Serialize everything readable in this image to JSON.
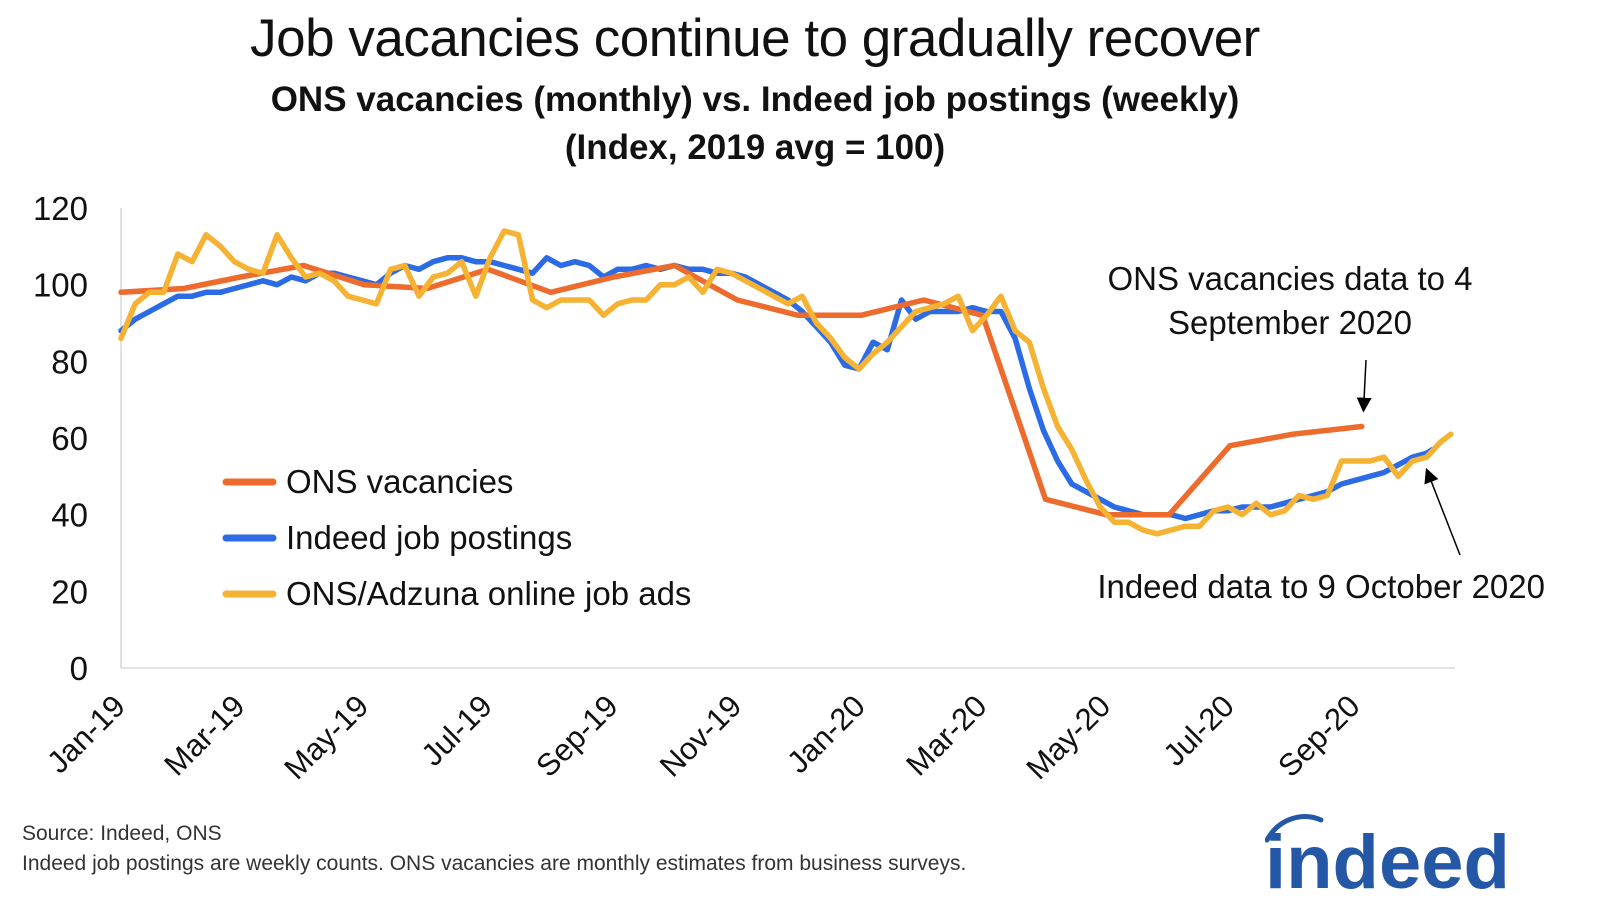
{
  "title": "Job vacancies continue to gradually recover",
  "subtitle_line1": "ONS vacancies (monthly) vs. Indeed job postings (weekly)",
  "subtitle_line2": "(Index, 2019 avg = 100)",
  "footer": {
    "source": "Source: Indeed, ONS",
    "note": "Indeed job postings are weekly counts. ONS vacancies are monthly estimates from business surveys."
  },
  "logo": {
    "text": "indeed",
    "color": "#2557a7"
  },
  "chart_data": {
    "type": "line",
    "ylim": [
      0,
      120
    ],
    "y_ticks": [
      "0",
      "20",
      "40",
      "60",
      "80",
      "100",
      "120"
    ],
    "x_tick_labels": [
      "Jan-19",
      "Mar-19",
      "May-19",
      "Jul-19",
      "Sep-19",
      "Nov-19",
      "Jan-20",
      "Mar-20",
      "May-20",
      "Jul-20",
      "Sep-20"
    ],
    "x_tick_dates": [
      "2019-01-01",
      "2019-03-01",
      "2019-05-01",
      "2019-07-01",
      "2019-09-01",
      "2019-11-01",
      "2020-01-01",
      "2020-03-01",
      "2020-05-01",
      "2020-07-01",
      "2020-09-01"
    ],
    "x_range": [
      "2019-01-01",
      "2020-10-20"
    ],
    "grid": false,
    "legend_position": "lower-left",
    "series": [
      {
        "name": "ONS vacancies",
        "color": "#ec6b2d",
        "points": [
          [
            "2019-01-01",
            98
          ],
          [
            "2019-02-01",
            99
          ],
          [
            "2019-03-01",
            102
          ],
          [
            "2019-04-01",
            105
          ],
          [
            "2019-05-01",
            100
          ],
          [
            "2019-06-01",
            99
          ],
          [
            "2019-07-01",
            104
          ],
          [
            "2019-08-01",
            98
          ],
          [
            "2019-09-01",
            102
          ],
          [
            "2019-10-01",
            105
          ],
          [
            "2019-11-01",
            96
          ],
          [
            "2019-12-01",
            92
          ],
          [
            "2020-01-01",
            92
          ],
          [
            "2020-02-01",
            96
          ],
          [
            "2020-03-01",
            92
          ],
          [
            "2020-04-01",
            44
          ],
          [
            "2020-05-01",
            40
          ],
          [
            "2020-06-01",
            40
          ],
          [
            "2020-07-01",
            58
          ],
          [
            "2020-08-01",
            61
          ],
          [
            "2020-09-04",
            63
          ]
        ]
      },
      {
        "name": "Indeed job postings",
        "color": "#2b6be6",
        "points": [
          [
            "2019-01-01",
            88
          ],
          [
            "2019-01-08",
            91
          ],
          [
            "2019-01-15",
            93
          ],
          [
            "2019-01-22",
            95
          ],
          [
            "2019-01-29",
            97
          ],
          [
            "2019-02-05",
            97
          ],
          [
            "2019-02-12",
            98
          ],
          [
            "2019-02-19",
            98
          ],
          [
            "2019-02-26",
            99
          ],
          [
            "2019-03-05",
            100
          ],
          [
            "2019-03-12",
            101
          ],
          [
            "2019-03-19",
            100
          ],
          [
            "2019-03-26",
            102
          ],
          [
            "2019-04-02",
            101
          ],
          [
            "2019-04-09",
            103
          ],
          [
            "2019-04-16",
            103
          ],
          [
            "2019-04-23",
            102
          ],
          [
            "2019-04-30",
            101
          ],
          [
            "2019-05-07",
            100
          ],
          [
            "2019-05-14",
            103
          ],
          [
            "2019-05-21",
            105
          ],
          [
            "2019-05-28",
            104
          ],
          [
            "2019-06-04",
            106
          ],
          [
            "2019-06-11",
            107
          ],
          [
            "2019-06-18",
            107
          ],
          [
            "2019-06-25",
            106
          ],
          [
            "2019-07-02",
            106
          ],
          [
            "2019-07-09",
            105
          ],
          [
            "2019-07-16",
            104
          ],
          [
            "2019-07-23",
            103
          ],
          [
            "2019-07-30",
            107
          ],
          [
            "2019-08-06",
            105
          ],
          [
            "2019-08-13",
            106
          ],
          [
            "2019-08-20",
            105
          ],
          [
            "2019-08-27",
            102
          ],
          [
            "2019-09-03",
            104
          ],
          [
            "2019-09-10",
            104
          ],
          [
            "2019-09-17",
            105
          ],
          [
            "2019-09-24",
            104
          ],
          [
            "2019-10-01",
            105
          ],
          [
            "2019-10-08",
            104
          ],
          [
            "2019-10-15",
            104
          ],
          [
            "2019-10-22",
            103
          ],
          [
            "2019-10-29",
            103
          ],
          [
            "2019-11-05",
            102
          ],
          [
            "2019-11-12",
            100
          ],
          [
            "2019-11-19",
            98
          ],
          [
            "2019-11-26",
            96
          ],
          [
            "2019-12-03",
            93
          ],
          [
            "2019-12-10",
            89
          ],
          [
            "2019-12-17",
            85
          ],
          [
            "2019-12-24",
            79
          ],
          [
            "2019-12-31",
            78
          ],
          [
            "2020-01-07",
            85
          ],
          [
            "2020-01-14",
            83
          ],
          [
            "2020-01-21",
            96
          ],
          [
            "2020-01-28",
            91
          ],
          [
            "2020-02-04",
            93
          ],
          [
            "2020-02-11",
            93
          ],
          [
            "2020-02-18",
            93
          ],
          [
            "2020-02-25",
            94
          ],
          [
            "2020-03-03",
            93
          ],
          [
            "2020-03-10",
            93
          ],
          [
            "2020-03-17",
            86
          ],
          [
            "2020-03-24",
            73
          ],
          [
            "2020-03-31",
            62
          ],
          [
            "2020-04-07",
            54
          ],
          [
            "2020-04-14",
            48
          ],
          [
            "2020-04-21",
            46
          ],
          [
            "2020-04-28",
            44
          ],
          [
            "2020-05-05",
            42
          ],
          [
            "2020-05-12",
            41
          ],
          [
            "2020-05-19",
            40
          ],
          [
            "2020-05-26",
            40
          ],
          [
            "2020-06-02",
            40
          ],
          [
            "2020-06-09",
            39
          ],
          [
            "2020-06-16",
            40
          ],
          [
            "2020-06-23",
            41
          ],
          [
            "2020-06-30",
            41
          ],
          [
            "2020-07-07",
            42
          ],
          [
            "2020-07-14",
            42
          ],
          [
            "2020-07-21",
            42
          ],
          [
            "2020-07-28",
            43
          ],
          [
            "2020-08-04",
            44
          ],
          [
            "2020-08-11",
            45
          ],
          [
            "2020-08-18",
            46
          ],
          [
            "2020-08-25",
            48
          ],
          [
            "2020-09-01",
            49
          ],
          [
            "2020-09-08",
            50
          ],
          [
            "2020-09-15",
            51
          ],
          [
            "2020-09-22",
            53
          ],
          [
            "2020-09-29",
            55
          ],
          [
            "2020-10-06",
            56
          ],
          [
            "2020-10-09",
            57
          ]
        ]
      },
      {
        "name": "ONS/Adzuna online job ads",
        "color": "#f6b233",
        "points": [
          [
            "2019-01-01",
            86
          ],
          [
            "2019-01-08",
            95
          ],
          [
            "2019-01-15",
            98
          ],
          [
            "2019-01-22",
            98
          ],
          [
            "2019-01-29",
            108
          ],
          [
            "2019-02-05",
            106
          ],
          [
            "2019-02-12",
            113
          ],
          [
            "2019-02-19",
            110
          ],
          [
            "2019-02-26",
            106
          ],
          [
            "2019-03-05",
            104
          ],
          [
            "2019-03-12",
            103
          ],
          [
            "2019-03-19",
            113
          ],
          [
            "2019-03-26",
            107
          ],
          [
            "2019-04-02",
            102
          ],
          [
            "2019-04-09",
            103
          ],
          [
            "2019-04-16",
            101
          ],
          [
            "2019-04-23",
            97
          ],
          [
            "2019-04-30",
            96
          ],
          [
            "2019-05-07",
            95
          ],
          [
            "2019-05-14",
            104
          ],
          [
            "2019-05-21",
            105
          ],
          [
            "2019-05-28",
            97
          ],
          [
            "2019-06-04",
            102
          ],
          [
            "2019-06-11",
            103
          ],
          [
            "2019-06-18",
            106
          ],
          [
            "2019-06-25",
            97
          ],
          [
            "2019-07-02",
            107
          ],
          [
            "2019-07-09",
            114
          ],
          [
            "2019-07-16",
            113
          ],
          [
            "2019-07-23",
            96
          ],
          [
            "2019-07-30",
            94
          ],
          [
            "2019-08-06",
            96
          ],
          [
            "2019-08-13",
            96
          ],
          [
            "2019-08-20",
            96
          ],
          [
            "2019-08-27",
            92
          ],
          [
            "2019-09-03",
            95
          ],
          [
            "2019-09-10",
            96
          ],
          [
            "2019-09-17",
            96
          ],
          [
            "2019-09-24",
            100
          ],
          [
            "2019-10-01",
            100
          ],
          [
            "2019-10-08",
            102
          ],
          [
            "2019-10-15",
            98
          ],
          [
            "2019-10-22",
            104
          ],
          [
            "2019-10-29",
            103
          ],
          [
            "2019-11-05",
            101
          ],
          [
            "2019-11-12",
            99
          ],
          [
            "2019-11-19",
            97
          ],
          [
            "2019-11-26",
            95
          ],
          [
            "2019-12-03",
            97
          ],
          [
            "2019-12-10",
            90
          ],
          [
            "2019-12-17",
            86
          ],
          [
            "2019-12-24",
            81
          ],
          [
            "2019-12-31",
            78
          ],
          [
            "2020-01-07",
            82
          ],
          [
            "2020-01-14",
            85
          ],
          [
            "2020-01-21",
            89
          ],
          [
            "2020-01-28",
            93
          ],
          [
            "2020-02-04",
            94
          ],
          [
            "2020-02-11",
            95
          ],
          [
            "2020-02-18",
            97
          ],
          [
            "2020-02-25",
            88
          ],
          [
            "2020-03-03",
            92
          ],
          [
            "2020-03-10",
            97
          ],
          [
            "2020-03-17",
            88
          ],
          [
            "2020-03-24",
            85
          ],
          [
            "2020-03-31",
            73
          ],
          [
            "2020-04-07",
            63
          ],
          [
            "2020-04-14",
            57
          ],
          [
            "2020-04-21",
            49
          ],
          [
            "2020-04-28",
            42
          ],
          [
            "2020-05-05",
            38
          ],
          [
            "2020-05-12",
            38
          ],
          [
            "2020-05-19",
            36
          ],
          [
            "2020-05-26",
            35
          ],
          [
            "2020-06-02",
            36
          ],
          [
            "2020-06-09",
            37
          ],
          [
            "2020-06-16",
            37
          ],
          [
            "2020-06-23",
            41
          ],
          [
            "2020-06-30",
            42
          ],
          [
            "2020-07-07",
            40
          ],
          [
            "2020-07-14",
            43
          ],
          [
            "2020-07-21",
            40
          ],
          [
            "2020-07-28",
            41
          ],
          [
            "2020-08-04",
            45
          ],
          [
            "2020-08-11",
            44
          ],
          [
            "2020-08-18",
            45
          ],
          [
            "2020-08-25",
            54
          ],
          [
            "2020-09-01",
            54
          ],
          [
            "2020-09-08",
            54
          ],
          [
            "2020-09-15",
            55
          ],
          [
            "2020-09-22",
            50
          ],
          [
            "2020-09-29",
            54
          ],
          [
            "2020-10-06",
            55
          ],
          [
            "2020-10-13",
            59
          ],
          [
            "2020-10-18",
            61
          ]
        ]
      }
    ],
    "annotations": [
      {
        "text_line1": "ONS vacancies data to 4",
        "text_line2": "September 2020",
        "arrow_to": [
          "2020-09-04",
          67
        ]
      },
      {
        "text": "Indeed data to 9 October 2020",
        "arrow_to": [
          "2020-10-09",
          53
        ]
      }
    ]
  }
}
